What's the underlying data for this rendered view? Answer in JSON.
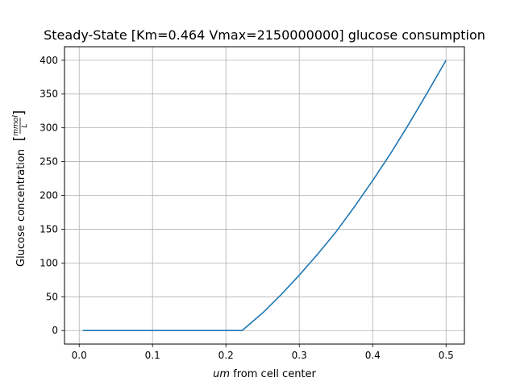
{
  "chart_data": {
    "type": "line",
    "title": "Steady-State [Km=0.464 Vmax=2150000000] glucose consumption",
    "xlabel_italic": "um",
    "xlabel_rest": " from cell center",
    "ylabel_main": "Glucose concentration",
    "ylabel_unit_num": "mmol",
    "ylabel_unit_den": "L",
    "xlim": [
      -0.02,
      0.525
    ],
    "ylim": [
      -20,
      420
    ],
    "grid": true,
    "line_color": "#1f77b4",
    "xticks": [
      0.0,
      0.1,
      0.2,
      0.3,
      0.4,
      0.5
    ],
    "xtick_labels": [
      "0.0",
      "0.1",
      "0.2",
      "0.3",
      "0.4",
      "0.5"
    ],
    "yticks": [
      0,
      50,
      100,
      150,
      200,
      250,
      300,
      350,
      400
    ],
    "ytick_labels": [
      "0",
      "50",
      "100",
      "150",
      "200",
      "250",
      "300",
      "350",
      "400"
    ],
    "series": [
      {
        "x": [
          0.005,
          0.05,
          0.1,
          0.15,
          0.2,
          0.222,
          0.25,
          0.275,
          0.3,
          0.325,
          0.35,
          0.375,
          0.4,
          0.425,
          0.45,
          0.475,
          0.5
        ],
        "y": [
          0,
          0,
          0,
          0,
          0,
          0,
          26,
          53,
          82,
          113,
          146,
          183,
          222,
          263,
          307,
          353,
          400
        ]
      }
    ]
  }
}
